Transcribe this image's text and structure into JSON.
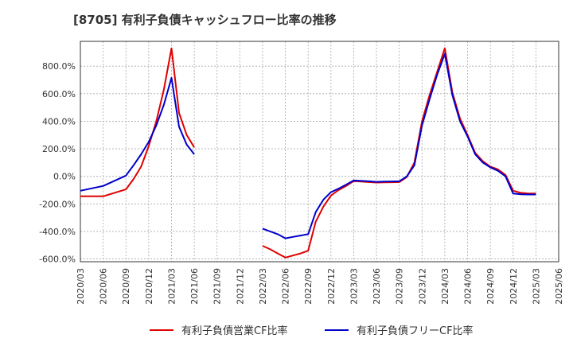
{
  "chart_data": {
    "type": "line",
    "title": "[8705]  有利子負債キャッシュフロー比率の推移",
    "xlabel": "",
    "ylabel": "",
    "ylim": [
      -620,
      980
    ],
    "yticks": [
      -600,
      -400,
      -200,
      0,
      200,
      400,
      600,
      800
    ],
    "ytick_labels": [
      "-600.0%",
      "-400.0%",
      "-200.0%",
      "0.0%",
      "200.0%",
      "400.0%",
      "600.0%",
      "800.0%"
    ],
    "xlim": [
      "2020-03",
      "2025-06"
    ],
    "xtick_labels": [
      "2020/03",
      "2020/06",
      "2020/09",
      "2020/12",
      "2021/03",
      "2021/06",
      "2021/09",
      "2021/12",
      "2022/03",
      "2022/06",
      "2022/09",
      "2022/12",
      "2023/03",
      "2023/06",
      "2023/09",
      "2023/12",
      "2024/03",
      "2024/06",
      "2024/09",
      "2024/12",
      "2025/03",
      "2025/06"
    ],
    "grid": true,
    "legend_position": "bottom",
    "series": [
      {
        "name": "有利子負債営業CF比率",
        "color": "#e00000",
        "points": [
          [
            "2020-03",
            -145
          ],
          [
            "2020-06",
            -145
          ],
          [
            "2020-09",
            -95
          ],
          [
            "2020-10",
            -20
          ],
          [
            "2020-11",
            70
          ],
          [
            "2020-12",
            220
          ],
          [
            "2021-01",
            400
          ],
          [
            "2021-02",
            630
          ],
          [
            "2021-03",
            930
          ],
          [
            "2021-04",
            460
          ],
          [
            "2021-05",
            300
          ],
          [
            "2021-06",
            210
          ],
          null,
          [
            "2022-03",
            -505
          ],
          [
            "2022-04",
            -530
          ],
          [
            "2022-05",
            -560
          ],
          [
            "2022-06",
            -590
          ],
          [
            "2022-07",
            -575
          ],
          [
            "2022-08",
            -560
          ],
          [
            "2022-09",
            -540
          ],
          [
            "2022-10",
            -330
          ],
          [
            "2022-11",
            -220
          ],
          [
            "2022-12",
            -140
          ],
          [
            "2023-01",
            -100
          ],
          [
            "2023-02",
            -70
          ],
          [
            "2023-03",
            -35
          ],
          [
            "2023-04",
            -38
          ],
          [
            "2023-05",
            -42
          ],
          [
            "2023-06",
            -45
          ],
          [
            "2023-07",
            -44
          ],
          [
            "2023-08",
            -43
          ],
          [
            "2023-09",
            -42
          ],
          [
            "2023-10",
            -5
          ],
          [
            "2023-11",
            100
          ],
          [
            "2023-12",
            400
          ],
          [
            "2024-01",
            590
          ],
          [
            "2024-02",
            760
          ],
          [
            "2024-03",
            930
          ],
          [
            "2024-04",
            610
          ],
          [
            "2024-05",
            420
          ],
          [
            "2024-06",
            300
          ],
          [
            "2024-07",
            170
          ],
          [
            "2024-08",
            110
          ],
          [
            "2024-09",
            70
          ],
          [
            "2024-10",
            50
          ],
          [
            "2024-11",
            10
          ],
          [
            "2024-12",
            -105
          ],
          [
            "2025-01",
            -120
          ],
          [
            "2025-02",
            -125
          ],
          [
            "2025-03",
            -125
          ]
        ]
      },
      {
        "name": "有利子負債フリーCF比率",
        "color": "#0000cc",
        "points": [
          [
            "2020-03",
            -105
          ],
          [
            "2020-06",
            -70
          ],
          [
            "2020-09",
            5
          ],
          [
            "2020-10",
            80
          ],
          [
            "2020-11",
            160
          ],
          [
            "2020-12",
            250
          ],
          [
            "2021-01",
            370
          ],
          [
            "2021-02",
            520
          ],
          [
            "2021-03",
            715
          ],
          [
            "2021-04",
            360
          ],
          [
            "2021-05",
            230
          ],
          [
            "2021-06",
            160
          ],
          null,
          [
            "2022-03",
            -380
          ],
          [
            "2022-04",
            -400
          ],
          [
            "2022-05",
            -420
          ],
          [
            "2022-06",
            -450
          ],
          [
            "2022-07",
            -440
          ],
          [
            "2022-08",
            -430
          ],
          [
            "2022-09",
            -420
          ],
          [
            "2022-10",
            -260
          ],
          [
            "2022-11",
            -170
          ],
          [
            "2022-12",
            -115
          ],
          [
            "2023-01",
            -90
          ],
          [
            "2023-02",
            -60
          ],
          [
            "2023-03",
            -30
          ],
          [
            "2023-04",
            -33
          ],
          [
            "2023-05",
            -36
          ],
          [
            "2023-06",
            -40
          ],
          [
            "2023-07",
            -38
          ],
          [
            "2023-08",
            -37
          ],
          [
            "2023-09",
            -36
          ],
          [
            "2023-10",
            0
          ],
          [
            "2023-11",
            80
          ],
          [
            "2023-12",
            370
          ],
          [
            "2024-01",
            560
          ],
          [
            "2024-02",
            740
          ],
          [
            "2024-03",
            890
          ],
          [
            "2024-04",
            590
          ],
          [
            "2024-05",
            400
          ],
          [
            "2024-06",
            290
          ],
          [
            "2024-07",
            160
          ],
          [
            "2024-08",
            100
          ],
          [
            "2024-09",
            65
          ],
          [
            "2024-10",
            40
          ],
          [
            "2024-11",
            0
          ],
          [
            "2024-12",
            -125
          ],
          [
            "2025-01",
            -130
          ],
          [
            "2025-02",
            -132
          ],
          [
            "2025-03",
            -132
          ]
        ]
      }
    ]
  }
}
